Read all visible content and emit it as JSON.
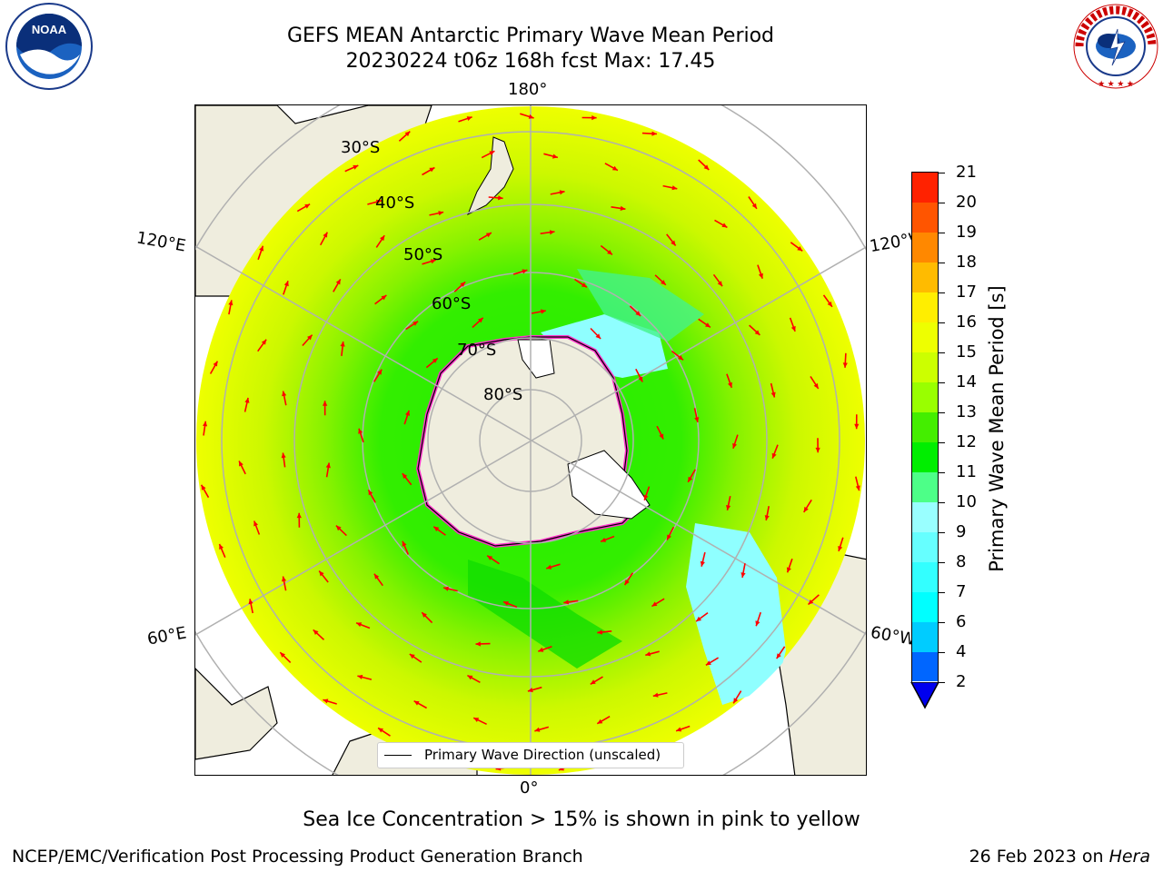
{
  "header": {
    "title_line1": "GEFS MEAN Antarctic Primary Wave Mean Period",
    "title_line2": "20230224 t06z 168h fcst   Max: 17.45"
  },
  "logos": {
    "left": {
      "name": "noaa-logo",
      "text": "NOAA"
    },
    "right": {
      "name": "national-weather-service-logo",
      "text": "NATIONAL WEATHER SERVICE"
    }
  },
  "map": {
    "projection": "south-polar-stereographic",
    "lon_labels": {
      "top": "180°",
      "bottom": "0°",
      "left_upper": "120°E",
      "left_lower": "60°E",
      "right_upper": "120°W",
      "right_lower": "60°W"
    },
    "lat_labels": [
      "30°S",
      "40°S",
      "50°S",
      "60°S",
      "70°S",
      "80°S"
    ],
    "legend_label": "Primary Wave Direction (unscaled)",
    "arrow_color": "#ff0000",
    "land_color": "#efedde",
    "sea_ice_color": "#ff33cc"
  },
  "colorbar": {
    "label": "Primary Wave Mean Period [s]",
    "ticks": [
      "2",
      "4",
      "6",
      "7",
      "8",
      "9",
      "10",
      "11",
      "12",
      "13",
      "14",
      "15",
      "16",
      "17",
      "18",
      "19",
      "20",
      "21"
    ],
    "colors": [
      "#0066ff",
      "#00ccff",
      "#00ffff",
      "#33ffff",
      "#66ffff",
      "#99ffff",
      "#4dff88",
      "#00ee00",
      "#44ee00",
      "#99ff00",
      "#ccff00",
      "#eeff00",
      "#ffee00",
      "#ffbb00",
      "#ff8800",
      "#ff5500",
      "#ff2200"
    ],
    "extend_min_color": "#0000ee"
  },
  "footer": {
    "note": "Sea Ice Concentration > 15% is shown in pink to yellow",
    "credit": "NCEP/EMC/Verification Post Processing Product Generation Branch",
    "date": "26 Feb 2023 on ",
    "machine": "Hera"
  }
}
